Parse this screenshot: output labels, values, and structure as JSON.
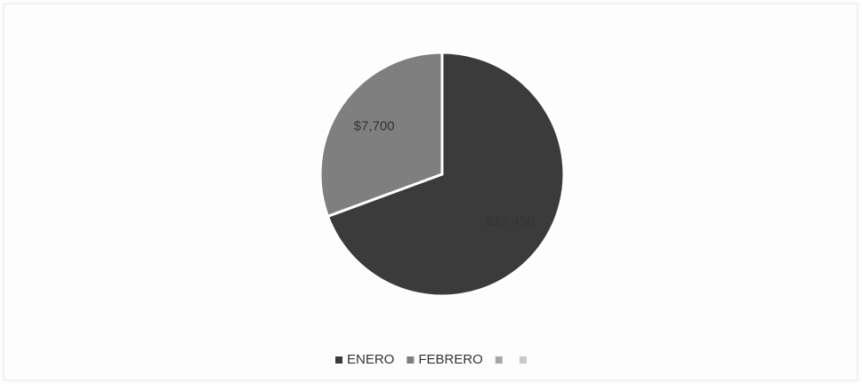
{
  "chart_data": {
    "type": "pie",
    "categories": [
      "ENERO",
      "FEBRERO",
      null,
      null
    ],
    "values": [
      17450,
      7700,
      null,
      null
    ],
    "value_labels": [
      "$17,450",
      "$7,700",
      null,
      null
    ],
    "colors": [
      "#3b3b3b",
      "#7f7f7f",
      "#a6a6a6",
      "#c9c9c9"
    ],
    "legend": "bottom"
  }
}
